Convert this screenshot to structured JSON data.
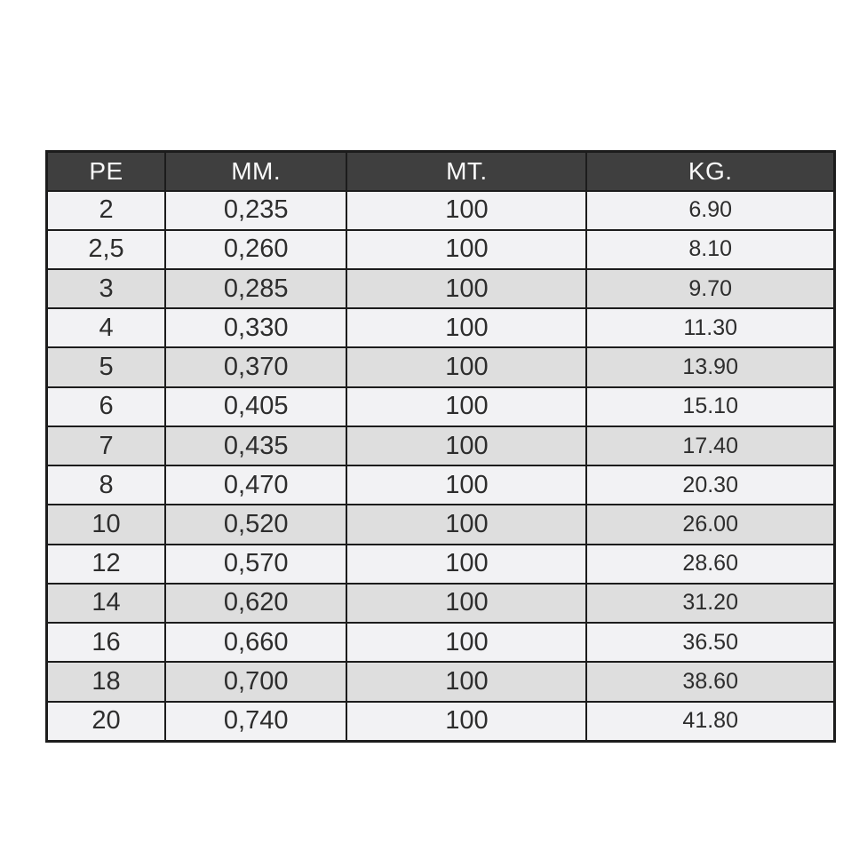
{
  "colors": {
    "header_bg": "#3f3f3f",
    "header_fg": "#fafafa",
    "row_light": "#f2f2f4",
    "row_shaded": "#dedede",
    "border": "#1c1c1c",
    "text": "#2d2d2d",
    "page_bg": "#ffffff"
  },
  "table": {
    "columns": [
      {
        "label": "PE"
      },
      {
        "label": "MM."
      },
      {
        "label": "MT."
      },
      {
        "label": "KG."
      }
    ],
    "rows": [
      [
        "2",
        "0,235",
        "100",
        "6.90"
      ],
      [
        "2,5",
        "0,260",
        "100",
        "8.10"
      ],
      [
        "3",
        "0,285",
        "100",
        "9.70"
      ],
      [
        "4",
        "0,330",
        "100",
        "11.30"
      ],
      [
        "5",
        "0,370",
        "100",
        "13.90"
      ],
      [
        "6",
        "0,405",
        "100",
        "15.10"
      ],
      [
        "7",
        "0,435",
        "100",
        "17.40"
      ],
      [
        "8",
        "0,470",
        "100",
        "20.30"
      ],
      [
        "10",
        "0,520",
        "100",
        "26.00"
      ],
      [
        "12",
        "0,570",
        "100",
        "28.60"
      ],
      [
        "14",
        "0,620",
        "100",
        "31.20"
      ],
      [
        "16",
        "0,660",
        "100",
        "36.50"
      ],
      [
        "18",
        "0,700",
        "100",
        "38.60"
      ],
      [
        "20",
        "0,740",
        "100",
        "41.80"
      ]
    ],
    "shaded_row_indices": [
      2,
      4,
      6,
      8,
      10,
      12
    ]
  },
  "chart_data": {
    "type": "table",
    "columns": [
      "PE",
      "MM.",
      "MT.",
      "KG."
    ],
    "rows": [
      [
        "2",
        "0,235",
        "100",
        "6.90"
      ],
      [
        "2,5",
        "0,260",
        "100",
        "8.10"
      ],
      [
        "3",
        "0,285",
        "100",
        "9.70"
      ],
      [
        "4",
        "0,330",
        "100",
        "11.30"
      ],
      [
        "5",
        "0,370",
        "100",
        "13.90"
      ],
      [
        "6",
        "0,405",
        "100",
        "15.10"
      ],
      [
        "7",
        "0,435",
        "100",
        "17.40"
      ],
      [
        "8",
        "0,470",
        "100",
        "20.30"
      ],
      [
        "10",
        "0,520",
        "100",
        "26.00"
      ],
      [
        "12",
        "0,570",
        "100",
        "28.60"
      ],
      [
        "14",
        "0,620",
        "100",
        "31.20"
      ],
      [
        "16",
        "0,660",
        "100",
        "36.50"
      ],
      [
        "18",
        "0,700",
        "100",
        "38.60"
      ],
      [
        "20",
        "0,740",
        "100",
        "41.80"
      ]
    ]
  }
}
